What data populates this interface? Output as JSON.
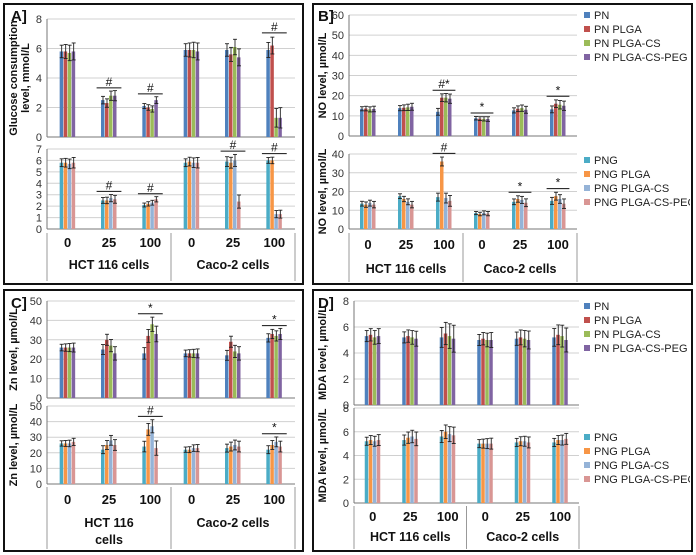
{
  "figure": {
    "colors": {
      "PN": "#4F81BD",
      "PN PLGA": "#C0504D",
      "PN PLGA-CS": "#9BBB59",
      "PN PLGA-CS-PEG": "#8064A2",
      "PNG": "#4BACC6",
      "PNG PLGA": "#F79646",
      "PNG PLGA-CS": "#95B3D7",
      "PNG PLGA-CS-PEG": "#D99694"
    }
  },
  "chart_data": [
    {
      "panel": "A]",
      "type": "bar",
      "ylabel": "Glucose consumption level, mmol/L",
      "cell_groups": [
        "HCT 116 cells",
        "Caco-2 cells"
      ],
      "categories": [
        "0",
        "25",
        "100",
        "0",
        "25",
        "100"
      ],
      "subplots": [
        {
          "ylabel": "Glucose consumption level, mmol/L",
          "ylim": [
            0,
            8
          ],
          "ticks": [
            0,
            2,
            4,
            6,
            8
          ],
          "series": [
            {
              "name": "PN",
              "values": [
                5.8,
                2.5,
                2.1,
                5.9,
                5.9,
                5.9
              ]
            },
            {
              "name": "PN PLGA",
              "values": [
                5.8,
                2.3,
                2.0,
                5.9,
                5.6,
                6.2
              ]
            },
            {
              "name": "PN PLGA-CS",
              "values": [
                5.7,
                2.8,
                1.9,
                5.9,
                6.1,
                1.3
              ]
            },
            {
              "name": "PN PLGA-CS-PEG",
              "values": [
                5.8,
                2.8,
                2.5,
                5.8,
                5.4,
                1.3
              ]
            }
          ],
          "errors": [
            0.5,
            0.3,
            0.2,
            0.5,
            0.5,
            0.6
          ],
          "annotations": [
            {
              "cat": 1,
              "text": "#"
            },
            {
              "cat": 2,
              "text": "#"
            },
            {
              "cat": 5,
              "text": "#"
            }
          ]
        },
        {
          "ylabel": "Glucose consumption level, mmol/L",
          "ylim": [
            0,
            7
          ],
          "ticks": [
            0,
            1,
            2,
            3,
            4,
            5,
            6,
            7
          ],
          "series": [
            {
              "name": "PNG",
              "values": [
                5.8,
                2.5,
                2.1,
                5.8,
                5.9,
                6.0
              ]
            },
            {
              "name": "PNG PLGA",
              "values": [
                5.8,
                2.5,
                2.2,
                5.9,
                5.8,
                6.0
              ]
            },
            {
              "name": "PNG PLGA-CS",
              "values": [
                5.7,
                2.7,
                2.3,
                5.8,
                6.0,
                1.3
              ]
            },
            {
              "name": "PNG PLGA-CS-PEG",
              "values": [
                5.8,
                2.6,
                2.6,
                5.8,
                2.4,
                1.3
              ]
            }
          ],
          "errors": [
            0.4,
            0.3,
            0.2,
            0.4,
            0.5,
            0.3
          ],
          "annotations": [
            {
              "cat": 1,
              "text": "#"
            },
            {
              "cat": 2,
              "text": "#"
            },
            {
              "cat": 4,
              "text": "#"
            },
            {
              "cat": 5,
              "text": "#"
            }
          ]
        }
      ]
    },
    {
      "panel": "B]",
      "type": "bar",
      "ylabel": "NO level, µmol/L",
      "cell_groups": [
        "HCT 116 cells",
        "Caco-2 cells"
      ],
      "categories": [
        "0",
        "25",
        "100",
        "0",
        "25",
        "100"
      ],
      "subplots": [
        {
          "ylabel": "NO level, µmol/L",
          "ylim": [
            0,
            60
          ],
          "ticks": [
            0,
            10,
            20,
            30,
            40,
            50,
            60
          ],
          "legend": [
            "PN",
            "PN PLGA",
            "PN PLGA-CS",
            "PN PLGA-CS-PEG"
          ],
          "series": [
            {
              "name": "PN",
              "values": [
                13.5,
                13.8,
                12.0,
                8.8,
                12.7,
                13.2
              ]
            },
            {
              "name": "PN PLGA",
              "values": [
                13.6,
                14.0,
                19.0,
                8.6,
                13.5,
                16.0
              ]
            },
            {
              "name": "PN PLGA-CS",
              "values": [
                13.2,
                14.2,
                19.0,
                8.5,
                13.8,
                15.5
              ]
            },
            {
              "name": "PN PLGA-CS-PEG",
              "values": [
                13.4,
                14.5,
                18.5,
                8.4,
                13.0,
                15.0
              ]
            }
          ],
          "errors": [
            1.2,
            1.5,
            2.0,
            1.0,
            1.5,
            2.0
          ],
          "annotations": [
            {
              "cat": 2,
              "text": "#*"
            },
            {
              "cat": 3,
              "text": "*"
            },
            {
              "cat": 5,
              "text": "*"
            }
          ]
        },
        {
          "ylabel": "NO level, µmol/L",
          "ylim": [
            0,
            40
          ],
          "ticks": [
            0,
            10,
            20,
            30,
            40
          ],
          "legend": [
            "PNG",
            "PNG PLGA",
            "PNG PLGA-CS",
            "PNG PLGA-CS-PEG"
          ],
          "series": [
            {
              "name": "PNG",
              "values": [
                13.5,
                17.5,
                17.0,
                8.5,
                14.5,
                15.0
              ]
            },
            {
              "name": "PNG PLGA",
              "values": [
                13.0,
                16.0,
                36.0,
                8.0,
                16.0,
                17.5
              ]
            },
            {
              "name": "PNG PLGA-CS",
              "values": [
                13.8,
                14.5,
                16.5,
                8.6,
                15.5,
                16.0
              ]
            },
            {
              "name": "PNG PLGA-CS-PEG",
              "values": [
                13.0,
                13.0,
                15.0,
                8.2,
                14.0,
                13.5
              ]
            }
          ],
          "errors": [
            1.5,
            1.5,
            2.5,
            1.0,
            1.8,
            2.2
          ],
          "annotations": [
            {
              "cat": 2,
              "text": "#"
            },
            {
              "cat": 4,
              "text": "*"
            },
            {
              "cat": 5,
              "text": "*"
            }
          ]
        }
      ]
    },
    {
      "panel": "C]",
      "type": "bar",
      "ylabel": "Zn level, µmol/L",
      "cell_groups": [
        "HCT 116 cells",
        "Caco-2 cells"
      ],
      "categories": [
        "0",
        "25",
        "100",
        "0",
        "25",
        "100"
      ],
      "subplots": [
        {
          "ylabel": "Zn level, µmol/L",
          "ylim": [
            0,
            50
          ],
          "ticks": [
            0,
            10,
            20,
            30,
            40,
            50
          ],
          "series": [
            {
              "name": "PN",
              "values": [
                26,
                25,
                23,
                23,
                22,
                31
              ]
            },
            {
              "name": "PN PLGA",
              "values": [
                26,
                30,
                32,
                23,
                29,
                33
              ]
            },
            {
              "name": "PN PLGA-CS",
              "values": [
                26,
                27,
                38,
                23,
                24,
                32
              ]
            },
            {
              "name": "PN PLGA-CS-PEG",
              "values": [
                26,
                23,
                33,
                23,
                23,
                33
              ]
            }
          ],
          "errors": [
            2.0,
            3.0,
            3.5,
            2.0,
            3.0,
            2.5
          ],
          "annotations": [
            {
              "cat": 2,
              "text": "*"
            },
            {
              "cat": 5,
              "text": "*"
            }
          ]
        },
        {
          "ylabel": "Zn level, µmol/L",
          "ylim": [
            0,
            50
          ],
          "ticks": [
            0,
            10,
            20,
            30,
            40,
            50
          ],
          "series": [
            {
              "name": "PNG",
              "values": [
                26,
                22,
                24,
                22,
                23,
                22
              ]
            },
            {
              "name": "PNG PLGA",
              "values": [
                26,
                25,
                35,
                22,
                24,
                25
              ]
            },
            {
              "name": "PNG PLGA-CS",
              "values": [
                26,
                28,
                37,
                23,
                25,
                27
              ]
            },
            {
              "name": "PNG PLGA-CS-PEG",
              "values": [
                27,
                25,
                23,
                23,
                24,
                24
              ]
            }
          ],
          "errors": [
            2.0,
            3.0,
            4.0,
            2.0,
            3.0,
            3.0
          ],
          "annotations": [
            {
              "cat": 2,
              "text": "#"
            },
            {
              "cat": 5,
              "text": "*"
            }
          ]
        }
      ]
    },
    {
      "panel": "D]",
      "type": "bar",
      "ylabel": "MDA level, µmol/L",
      "cell_groups": [
        "HCT 116 cells",
        "Caco-2 cells"
      ],
      "categories": [
        "0",
        "25",
        "100",
        "0",
        "25",
        "100"
      ],
      "subplots": [
        {
          "ylabel": "MDA level, µmol/L",
          "ylim": [
            0,
            8
          ],
          "ticks": [
            0,
            2,
            4,
            6,
            8
          ],
          "legend": [
            "PN",
            "PN PLGA",
            "PN PLGA-CS",
            "PN PLGA-CS-PEG"
          ],
          "series": [
            {
              "name": "PN",
              "values": [
                5.3,
                5.2,
                5.2,
                5.0,
                5.1,
                5.2
              ]
            },
            {
              "name": "PN PLGA",
              "values": [
                5.4,
                5.3,
                5.5,
                5.1,
                5.2,
                5.4
              ]
            },
            {
              "name": "PN PLGA-CS",
              "values": [
                5.2,
                5.2,
                5.3,
                5.0,
                5.1,
                5.3
              ]
            },
            {
              "name": "PN PLGA-CS-PEG",
              "values": [
                5.3,
                5.1,
                5.1,
                5.0,
                5.0,
                5.0
              ]
            }
          ],
          "errors": [
            0.5,
            0.5,
            0.9,
            0.5,
            0.6,
            0.8
          ],
          "annotations": []
        },
        {
          "ylabel": "MDA level, µmol/L",
          "ylim": [
            0,
            8
          ],
          "ticks": [
            0,
            2,
            4,
            6,
            8
          ],
          "legend": [
            "PNG",
            "PNG PLGA",
            "PNG PLGA-CS",
            "PNG PLGA-CS-PEG"
          ],
          "series": [
            {
              "name": "PNG",
              "values": [
                5.2,
                5.3,
                5.6,
                5.0,
                5.1,
                5.1
              ]
            },
            {
              "name": "PNG PLGA",
              "values": [
                5.3,
                5.5,
                6.0,
                5.0,
                5.2,
                5.3
              ]
            },
            {
              "name": "PNG PLGA-CS",
              "values": [
                5.2,
                5.6,
                5.8,
                5.0,
                5.2,
                5.3
              ]
            },
            {
              "name": "PNG PLGA-CS-PEG",
              "values": [
                5.3,
                5.4,
                5.7,
                5.0,
                5.1,
                5.4
              ]
            }
          ],
          "errors": [
            0.4,
            0.5,
            0.6,
            0.4,
            0.4,
            0.4
          ],
          "annotations": []
        }
      ]
    }
  ]
}
